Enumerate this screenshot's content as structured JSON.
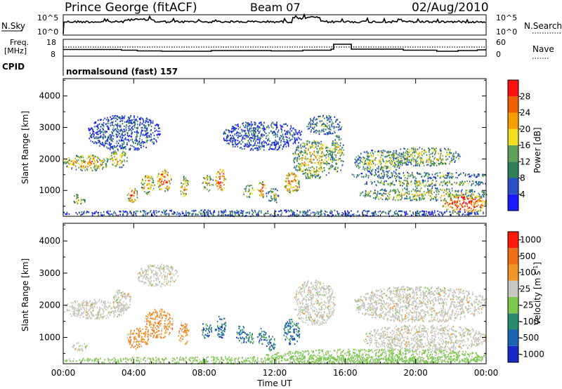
{
  "header": {
    "station": "Prince George (fitACF)",
    "beam": "Beam 07",
    "date": "02/Aug/2010"
  },
  "summary_labels": {
    "nsky": "N.Sky",
    "nsky_top": "10^5",
    "nsky_bottom": "10^0",
    "nsearch": "N.Search",
    "nsearch_top": "10^5",
    "nsearch_bottom": "10^0",
    "freq_line1": "Freq.",
    "freq_line2": "[MHz]",
    "freq_top": "18",
    "freq_bottom": "8",
    "nave": "Nave",
    "nave_top": "60",
    "nave_bottom": "0",
    "cpid": "CPID",
    "cpid_value": "normalsound (fast) 157"
  },
  "colors": {
    "power_scale": [
      "#1a1aff",
      "#2a50c8",
      "#2e7f55",
      "#5fa05a",
      "#f0e020",
      "#f5a000",
      "#f06000",
      "#ff1010"
    ],
    "velocity_scale": [
      "#1a28c8",
      "#1e64b4",
      "#2a8a6e",
      "#7ec850",
      "#c8c8c0",
      "#f09628",
      "#f06e14",
      "#ff1a0a"
    ]
  },
  "chart_data": [
    {
      "type": "heatmap",
      "panel": "power",
      "ylabel": "Slant Range [km]",
      "xlabel": "",
      "x_ticks": [
        "00:00",
        "04:00",
        "08:00",
        "12:00",
        "16:00",
        "20:00",
        "00:00"
      ],
      "y_ticks": [
        "1000",
        "2000",
        "3000",
        "4000"
      ],
      "xlim": [
        0,
        24
      ],
      "ylim": [
        180,
        4550
      ],
      "colorbar": {
        "label": "Power [dB]",
        "ticks": [
          "4",
          "8",
          "12",
          "16",
          "20",
          "24",
          "28"
        ]
      }
    },
    {
      "type": "heatmap",
      "panel": "velocity",
      "ylabel": "Slant Range [km]",
      "xlabel": "Time UT",
      "x_ticks": [
        "00:00",
        "04:00",
        "08:00",
        "12:00",
        "16:00",
        "20:00",
        "00:00"
      ],
      "y_ticks": [
        "1000",
        "2000",
        "3000",
        "4000"
      ],
      "xlim": [
        0,
        24
      ],
      "ylim": [
        180,
        4550
      ],
      "colorbar": {
        "label": "Velocity [m s^-1]",
        "ticks": [
          "1000",
          "500",
          "100",
          "25",
          "-25",
          "-100",
          "-500",
          "-1000"
        ]
      }
    }
  ]
}
